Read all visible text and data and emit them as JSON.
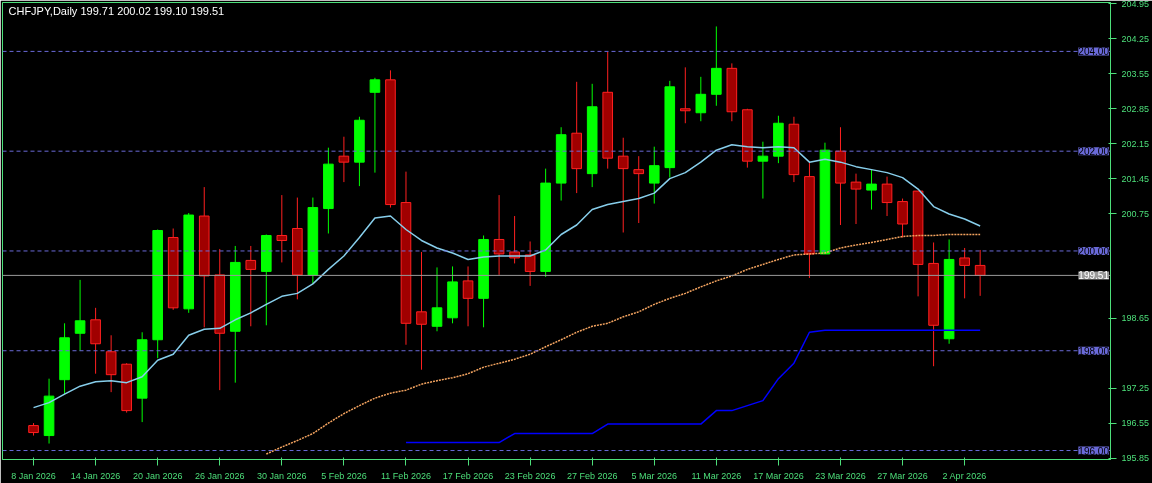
{
  "chart_data": {
    "type": "candlestick",
    "title": "CHFJPY,Daily  199.71 200.02 199.10 199.51",
    "categories": [
      "8 Jan 2026",
      null,
      null,
      null,
      "14 Jan 2026",
      null,
      null,
      null,
      "20 Jan 2026",
      null,
      null,
      null,
      "26 Jan 2026",
      null,
      null,
      null,
      "30 Jan 2026",
      null,
      null,
      null,
      "5 Feb 2026",
      null,
      null,
      null,
      "11 Feb 2026",
      null,
      null,
      null,
      "17 Feb 2026",
      null,
      null,
      null,
      "23 Feb 2026",
      null,
      null,
      null,
      "27 Feb 2026",
      null,
      null,
      null,
      "5 Mar 2026",
      null,
      null,
      null,
      "11 Mar 2026",
      null,
      null,
      null,
      "17 Mar 2026",
      null,
      null,
      null,
      "23 Mar 2026",
      null,
      null,
      null,
      "27 Mar 2026",
      null,
      null,
      null,
      "2 Apr 2026",
      null
    ],
    "ohlc": [
      [
        196.5,
        196.55,
        196.3,
        196.36
      ],
      [
        196.3,
        197.44,
        196.14,
        197.09
      ],
      [
        197.42,
        198.55,
        197.13,
        198.26
      ],
      [
        198.35,
        199.42,
        198.0,
        198.6
      ],
      [
        198.62,
        198.86,
        197.54,
        198.14
      ],
      [
        197.98,
        198.31,
        197.17,
        197.52
      ],
      [
        197.73,
        197.75,
        196.76,
        196.8
      ],
      [
        197.05,
        198.37,
        196.57,
        198.22
      ],
      [
        198.22,
        200.43,
        197.85,
        200.41
      ],
      [
        200.27,
        200.45,
        198.82,
        198.86
      ],
      [
        198.84,
        200.76,
        198.76,
        200.72
      ],
      [
        200.7,
        201.28,
        198.47,
        199.5
      ],
      [
        199.52,
        200.04,
        197.21,
        198.35
      ],
      [
        198.39,
        200.1,
        197.36,
        199.77
      ],
      [
        199.81,
        200.1,
        198.49,
        199.63
      ],
      [
        199.59,
        200.33,
        198.51,
        200.31
      ],
      [
        200.31,
        201.12,
        199.77,
        200.21
      ],
      [
        200.45,
        201.07,
        199.03,
        199.52
      ],
      [
        199.52,
        201.07,
        199.34,
        200.87
      ],
      [
        200.85,
        202.07,
        200.35,
        201.74
      ],
      [
        201.9,
        202.29,
        201.38,
        201.78
      ],
      [
        201.78,
        202.69,
        201.3,
        202.62
      ],
      [
        203.18,
        203.47,
        201.57,
        203.43
      ],
      [
        203.43,
        203.62,
        200.87,
        200.93
      ],
      [
        200.97,
        201.59,
        198.12,
        198.55
      ],
      [
        198.78,
        199.98,
        197.62,
        198.53
      ],
      [
        198.49,
        199.67,
        198.39,
        198.86
      ],
      [
        198.66,
        199.69,
        198.55,
        199.38
      ],
      [
        199.4,
        199.69,
        198.49,
        199.05
      ],
      [
        199.05,
        200.31,
        198.47,
        200.23
      ],
      [
        200.23,
        201.12,
        199.52,
        199.94
      ],
      [
        199.98,
        200.7,
        199.75,
        199.86
      ],
      [
        199.92,
        200.19,
        199.3,
        199.59
      ],
      [
        199.59,
        201.65,
        199.48,
        201.36
      ],
      [
        201.36,
        202.48,
        201.01,
        202.33
      ],
      [
        202.36,
        203.39,
        201.16,
        201.65
      ],
      [
        201.55,
        203.35,
        201.28,
        202.89
      ],
      [
        203.18,
        203.99,
        201.65,
        201.86
      ],
      [
        201.9,
        202.27,
        200.37,
        201.65
      ],
      [
        201.63,
        201.9,
        200.56,
        201.55
      ],
      [
        201.36,
        202.09,
        200.95,
        201.71
      ],
      [
        201.67,
        203.41,
        201.47,
        203.29
      ],
      [
        202.85,
        203.68,
        202.56,
        202.81
      ],
      [
        202.77,
        203.49,
        202.6,
        203.14
      ],
      [
        203.14,
        204.5,
        202.91,
        203.66
      ],
      [
        203.66,
        203.76,
        202.6,
        202.79
      ],
      [
        202.83,
        202.85,
        201.67,
        201.8
      ],
      [
        201.8,
        202.19,
        201.05,
        201.9
      ],
      [
        201.9,
        202.71,
        201.76,
        202.56
      ],
      [
        202.54,
        202.69,
        201.38,
        201.53
      ],
      [
        201.49,
        201.78,
        199.46,
        199.94
      ],
      [
        199.94,
        202.17,
        199.94,
        202.02
      ],
      [
        202.0,
        202.48,
        200.52,
        201.36
      ],
      [
        201.38,
        201.55,
        200.54,
        201.24
      ],
      [
        201.22,
        201.63,
        200.83,
        201.34
      ],
      [
        201.34,
        201.49,
        200.7,
        200.97
      ],
      [
        200.99,
        201.05,
        200.27,
        200.54
      ],
      [
        201.2,
        201.2,
        199.09,
        199.73
      ],
      [
        199.75,
        200.17,
        197.69,
        198.51
      ],
      [
        198.24,
        200.23,
        198.14,
        199.83
      ],
      [
        199.86,
        200.06,
        199.05,
        199.71
      ],
      [
        199.71,
        200.02,
        199.1,
        199.51
      ]
    ],
    "colors": [
      "#a00000",
      "#00ff00",
      "#00ff00",
      "#00ff00",
      "#a00000",
      "#a00000",
      "#a00000",
      "#00ff00",
      "#00ff00",
      "#a00000",
      "#00ff00",
      "#a00000",
      "#a00000",
      "#00ff00",
      "#a00000",
      "#00ff00",
      "#a00000",
      "#a00000",
      "#00ff00",
      "#00ff00",
      "#a00000",
      "#00ff00",
      "#00ff00",
      "#a00000",
      "#a00000",
      "#a00000",
      "#00ff00",
      "#00ff00",
      "#a00000",
      "#00ff00",
      "#a00000",
      "#a00000",
      "#a00000",
      "#00ff00",
      "#00ff00",
      "#a00000",
      "#00ff00",
      "#a00000",
      "#a00000",
      "#a00000",
      "#00ff00",
      "#00ff00",
      "#a00000",
      "#00ff00",
      "#00ff00",
      "#a00000",
      "#a00000",
      "#00ff00",
      "#00ff00",
      "#a00000",
      "#a00000",
      "#00ff00",
      "#a00000",
      "#a00000",
      "#00ff00",
      "#a00000",
      "#a00000",
      "#a00000",
      "#a00000",
      "#00ff00",
      "#a00000",
      "#a00000"
    ],
    "series": [
      {
        "type": "line",
        "color": "#87ceeb",
        "line_style": "solid",
        "values": [
          196.86,
          196.96,
          197.13,
          197.29,
          197.38,
          197.4,
          197.36,
          197.48,
          197.81,
          197.93,
          198.31,
          198.43,
          198.45,
          198.62,
          198.76,
          198.93,
          199.09,
          199.15,
          199.34,
          199.63,
          199.9,
          200.27,
          200.66,
          200.7,
          200.43,
          200.21,
          200.06,
          199.96,
          199.83,
          199.88,
          199.9,
          199.9,
          199.9,
          200.02,
          200.33,
          200.52,
          200.83,
          200.93,
          200.99,
          201.05,
          201.16,
          201.45,
          201.57,
          201.78,
          202.02,
          202.13,
          202.09,
          202.07,
          202.09,
          202.07,
          201.78,
          201.84,
          201.78,
          201.69,
          201.63,
          201.57,
          201.47,
          201.24,
          200.89,
          200.74,
          200.64,
          200.5
        ]
      },
      {
        "type": "line",
        "color": "#f4a460",
        "line_style": "dotted",
        "values": [
          null,
          null,
          null,
          null,
          null,
          null,
          null,
          null,
          null,
          null,
          null,
          null,
          null,
          null,
          null,
          195.93,
          196.07,
          196.2,
          196.34,
          196.55,
          196.74,
          196.9,
          197.05,
          197.15,
          197.21,
          197.33,
          197.4,
          197.46,
          197.54,
          197.67,
          197.75,
          197.83,
          197.93,
          198.08,
          198.22,
          198.37,
          198.49,
          198.55,
          198.68,
          198.78,
          198.93,
          199.05,
          199.15,
          199.28,
          199.4,
          199.5,
          199.63,
          199.73,
          199.83,
          199.92,
          199.94,
          199.96,
          200.06,
          200.12,
          200.17,
          200.23,
          200.29,
          200.31,
          200.31,
          200.33,
          200.33,
          200.33
        ]
      },
      {
        "type": "line",
        "color": "#0000ff",
        "line_style": "solid",
        "values": [
          null,
          null,
          null,
          null,
          null,
          null,
          null,
          null,
          null,
          null,
          null,
          null,
          null,
          null,
          null,
          null,
          null,
          null,
          null,
          null,
          null,
          null,
          null,
          null,
          196.16,
          196.16,
          196.16,
          196.16,
          196.16,
          196.16,
          196.16,
          196.34,
          196.34,
          196.34,
          196.34,
          196.34,
          196.34,
          196.53,
          196.53,
          196.53,
          196.53,
          196.53,
          196.53,
          196.53,
          196.8,
          196.8,
          196.9,
          197.0,
          197.44,
          197.75,
          198.37,
          198.41,
          198.41,
          198.41,
          198.41,
          198.41,
          198.41,
          198.41,
          198.41,
          198.41,
          198.41,
          198.41
        ]
      }
    ],
    "ylim": [
      195.82,
      204.98
    ],
    "yticks": [
      204.95,
      204.25,
      203.55,
      202.85,
      202.15,
      201.45,
      200.75,
      198.65,
      197.25,
      196.55,
      195.85
    ],
    "ref_lines": [
      {
        "axis": "y",
        "value": 204,
        "label": "204.00",
        "color": "#6a6ad8",
        "line_style": "dashed"
      },
      {
        "axis": "y",
        "value": 202,
        "label": "202.00",
        "color": "#6a6ad8",
        "line_style": "dashed"
      },
      {
        "axis": "y",
        "value": 200,
        "label": "200.00",
        "color": "#6a6ad8",
        "line_style": "dashed"
      },
      {
        "axis": "y",
        "value": 198,
        "label": "198.00",
        "color": "#6a6ad8",
        "line_style": "dashed"
      },
      {
        "axis": "y",
        "value": 196,
        "label": "196.00",
        "color": "#6a6ad8",
        "line_style": "dashed"
      },
      {
        "axis": "y",
        "value": 199.51,
        "label": "199.51",
        "color": "#9a9a9a",
        "line_style": "solid"
      }
    ],
    "grid": false
  }
}
